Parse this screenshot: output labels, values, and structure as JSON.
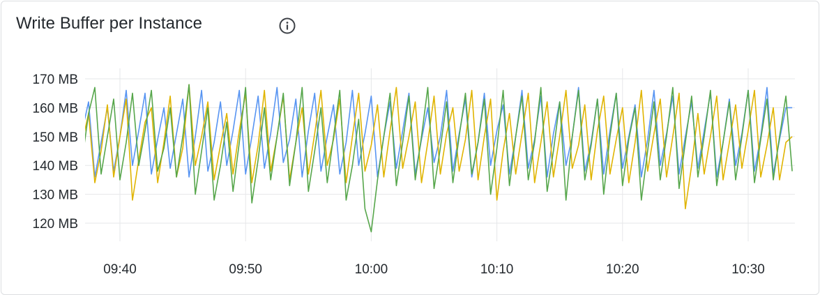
{
  "panel": {
    "title": "Write Buffer per Instance",
    "info_icon": "info-circle-icon"
  },
  "chart_data": {
    "type": "line",
    "title": "Write Buffer per Instance",
    "x_start": "09:37:00",
    "x_step_seconds": 30,
    "x_range": [
      "09:37:00",
      "10:33:30"
    ],
    "x_ticks": [
      "09:40",
      "09:50",
      "10:00",
      "10:10",
      "10:20",
      "10:30"
    ],
    "y_ticks": [
      "170 MB",
      "160 MB",
      "150 MB",
      "140 MB",
      "130 MB",
      "120 MB"
    ],
    "y_unit": "MB",
    "ylim": [
      114,
      176
    ],
    "grid": true,
    "legend": "none",
    "series": [
      {
        "color": "#5794F2",
        "values": [
          152,
          162,
          136,
          148,
          160,
          138,
          150,
          166,
          140,
          152,
          165,
          137,
          149,
          160,
          139,
          151,
          163,
          136,
          150,
          166,
          138,
          148,
          162,
          140,
          152,
          166,
          137,
          150,
          164,
          139,
          151,
          167,
          141,
          149,
          163,
          136,
          152,
          165,
          138,
          150,
          161,
          137,
          148,
          166,
          140,
          151,
          164,
          136,
          150,
          162,
          139,
          152,
          165,
          137,
          149,
          160,
          141,
          150,
          166,
          138,
          151,
          163,
          136,
          148,
          165,
          140,
          152,
          161,
          137,
          150,
          166,
          139,
          149,
          164,
          136,
          151,
          162,
          140,
          150,
          167,
          138,
          148,
          163,
          137,
          152,
          165,
          139,
          150,
          161,
          136,
          149,
          166,
          140,
          151,
          164,
          137,
          150,
          162,
          139,
          152,
          165,
          136,
          148,
          163,
          140,
          151,
          166,
          138,
          150,
          167,
          137,
          149,
          160,
          160
        ]
      },
      {
        "color": "#E0B400",
        "values": [
          148,
          158,
          134,
          145,
          161,
          136,
          150,
          163,
          128,
          142,
          155,
          160,
          134,
          148,
          164,
          136,
          146,
          168,
          140,
          150,
          162,
          135,
          147,
          158,
          137,
          152,
          165,
          134,
          147,
          166,
          138,
          150,
          164,
          135,
          148,
          160,
          137,
          151,
          166,
          140,
          149,
          163,
          134,
          150,
          165,
          138,
          147,
          161,
          136,
          152,
          167,
          139,
          150,
          162,
          134,
          148,
          164,
          137,
          151,
          160,
          138,
          149,
          166,
          135,
          150,
          163,
          128,
          145,
          158,
          137,
          151,
          165,
          134,
          148,
          162,
          136,
          150,
          166,
          139,
          147,
          161,
          135,
          152,
          164,
          137,
          149,
          160,
          134,
          148,
          166,
          138,
          151,
          163,
          136,
          150,
          165,
          125,
          140,
          158,
          137,
          150,
          164,
          135,
          148,
          161,
          139,
          152,
          166,
          136,
          147,
          160,
          135,
          148,
          150
        ]
      },
      {
        "color": "#56A64B",
        "values": [
          142,
          158,
          167,
          137,
          150,
          163,
          135,
          148,
          165,
          140,
          152,
          166,
          138,
          146,
          160,
          136,
          150,
          168,
          130,
          145,
          160,
          128,
          140,
          155,
          131,
          148,
          167,
          127,
          142,
          160,
          135,
          150,
          165,
          133,
          148,
          167,
          131,
          145,
          160,
          134,
          150,
          166,
          128,
          140,
          156,
          125,
          117,
          135,
          150,
          165,
          133,
          148,
          164,
          135,
          150,
          167,
          132,
          146,
          162,
          134,
          150,
          165,
          137,
          148,
          163,
          130,
          146,
          166,
          133,
          150,
          164,
          135,
          148,
          167,
          131,
          145,
          162,
          128,
          150,
          166,
          135,
          147,
          163,
          130,
          150,
          165,
          133,
          149,
          160,
          128,
          145,
          162,
          135,
          150,
          167,
          132,
          148,
          164,
          136,
          150,
          166,
          133,
          148,
          162,
          135,
          150,
          166,
          134,
          149,
          163,
          135,
          150,
          164,
          138
        ]
      }
    ]
  }
}
